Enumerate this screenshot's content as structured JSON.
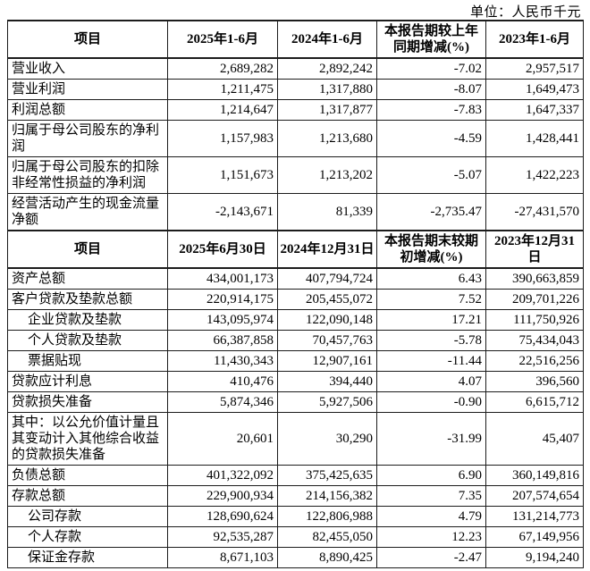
{
  "unit_label": "单位：人民币千元",
  "table": {
    "sections": [
      {
        "header": [
          "项目",
          "2025年1-6月",
          "2024年1-6月",
          "本报告期较上年同期增减(%)",
          "2023年1-6月"
        ],
        "rows": [
          {
            "label": "营业收入",
            "indent": false,
            "values": [
              "2,689,282",
              "2,892,242",
              "-7.02",
              "2,957,517"
            ]
          },
          {
            "label": "营业利润",
            "indent": false,
            "values": [
              "1,211,475",
              "1,317,880",
              "-8.07",
              "1,649,473"
            ]
          },
          {
            "label": "利润总额",
            "indent": false,
            "values": [
              "1,214,647",
              "1,317,877",
              "-7.83",
              "1,647,337"
            ]
          },
          {
            "label": "归属于母公司股东的净利润",
            "indent": false,
            "values": [
              "1,157,983",
              "1,213,680",
              "-4.59",
              "1,428,441"
            ]
          },
          {
            "label": "归属于母公司股东的扣除非经常性损益的净利润",
            "indent": false,
            "values": [
              "1,151,673",
              "1,213,202",
              "-5.07",
              "1,422,223"
            ]
          },
          {
            "label": "经营活动产生的现金流量净额",
            "indent": false,
            "values": [
              "-2,143,671",
              "81,339",
              "-2,735.47",
              "-27,431,570"
            ]
          }
        ]
      },
      {
        "header": [
          "项目",
          "2025年6月30日",
          "2024年12月31日",
          "本报告期末较期初增减(%)",
          "2023年12月31日"
        ],
        "rows": [
          {
            "label": "资产总额",
            "indent": false,
            "values": [
              "434,001,173",
              "407,794,724",
              "6.43",
              "390,663,859"
            ]
          },
          {
            "label": "客户贷款及垫款总额",
            "indent": false,
            "values": [
              "220,914,175",
              "205,455,072",
              "7.52",
              "209,701,226"
            ]
          },
          {
            "label": "企业贷款及垫款",
            "indent": true,
            "values": [
              "143,095,974",
              "122,090,148",
              "17.21",
              "111,750,926"
            ]
          },
          {
            "label": "个人贷款及垫款",
            "indent": true,
            "values": [
              "66,387,858",
              "70,457,763",
              "-5.78",
              "75,434,043"
            ]
          },
          {
            "label": "票据贴现",
            "indent": true,
            "values": [
              "11,430,343",
              "12,907,161",
              "-11.44",
              "22,516,256"
            ]
          },
          {
            "label": "贷款应计利息",
            "indent": false,
            "values": [
              "410,476",
              "394,440",
              "4.07",
              "396,560"
            ]
          },
          {
            "label": "贷款损失准备",
            "indent": false,
            "values": [
              "5,874,346",
              "5,927,506",
              "-0.90",
              "6,615,712"
            ]
          },
          {
            "label": "其中：以公允价值计量且其变动计入其他综合收益的贷款损失准备",
            "indent": false,
            "values": [
              "20,601",
              "30,290",
              "-31.99",
              "45,407"
            ]
          },
          {
            "label": "负债总额",
            "indent": false,
            "values": [
              "401,322,092",
              "375,425,635",
              "6.90",
              "360,149,816"
            ]
          },
          {
            "label": "存款总额",
            "indent": false,
            "values": [
              "229,900,934",
              "214,156,382",
              "7.35",
              "207,574,654"
            ]
          },
          {
            "label": "公司存款",
            "indent": true,
            "values": [
              "128,690,624",
              "122,806,988",
              "4.79",
              "131,214,773"
            ]
          },
          {
            "label": "个人存款",
            "indent": true,
            "values": [
              "92,535,287",
              "82,455,050",
              "12.23",
              "67,149,956"
            ]
          },
          {
            "label": "保证金存款",
            "indent": true,
            "values": [
              "8,671,103",
              "8,890,425",
              "-2.47",
              "9,194,240"
            ]
          }
        ]
      }
    ]
  }
}
